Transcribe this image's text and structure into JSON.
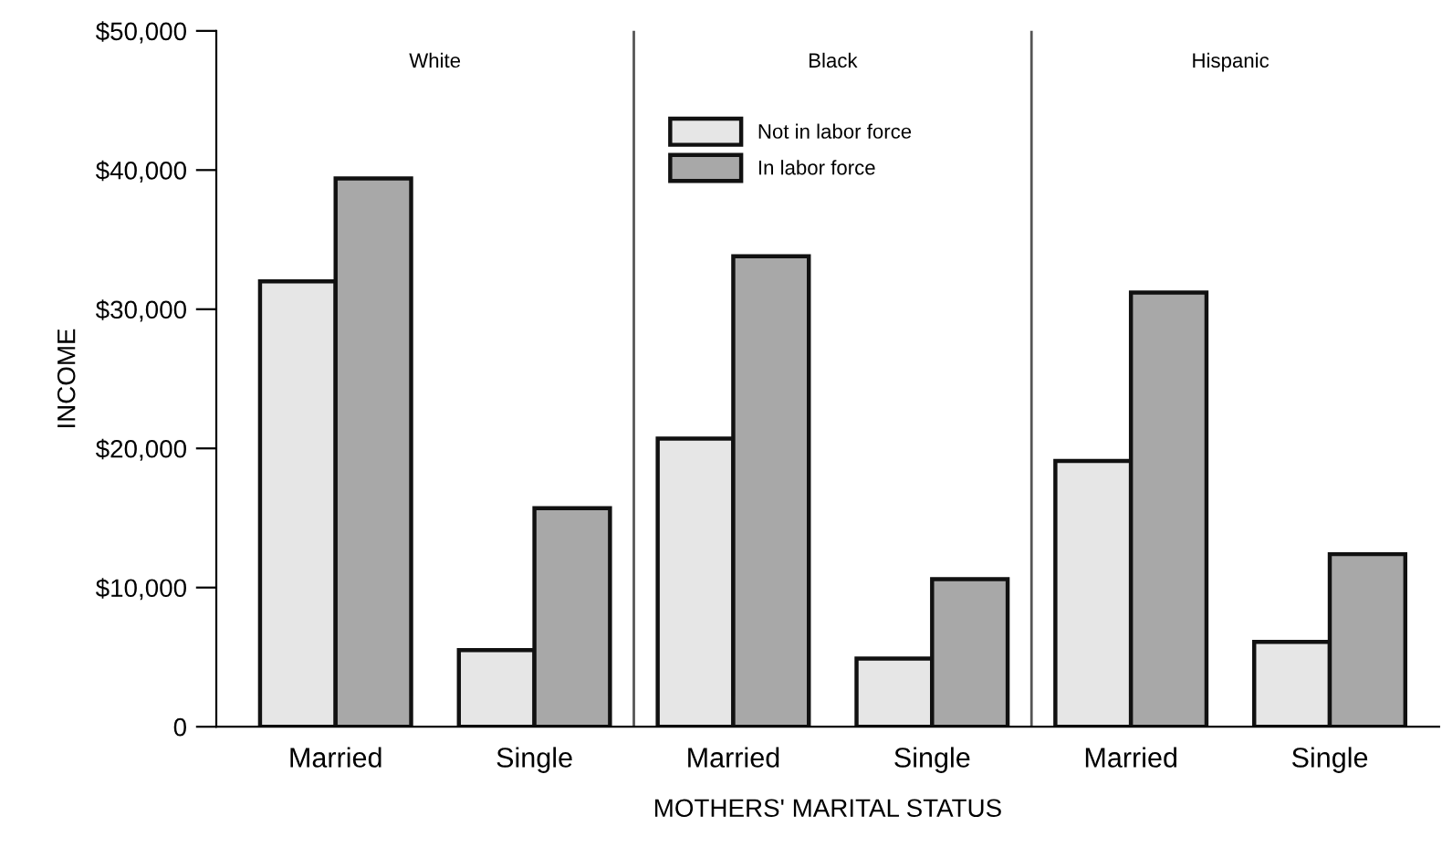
{
  "chart_data": {
    "type": "bar",
    "xlabel": "MOTHERS' MARITAL STATUS",
    "ylabel": "INCOME",
    "categories": [
      "Married",
      "Single",
      "Married",
      "Single",
      "Married",
      "Single"
    ],
    "series": [
      {
        "name": "Not in labor force",
        "color": "#e6e6e6",
        "values": [
          32000,
          5500,
          20700,
          4900,
          19100,
          6100
        ]
      },
      {
        "name": "In labor force",
        "color": "#a8a8a8",
        "values": [
          39400,
          15700,
          33800,
          10600,
          31200,
          12400
        ]
      }
    ],
    "annotations": [
      "White",
      "Black",
      "Hispanic"
    ],
    "ylim": [
      0,
      50000
    ],
    "yticks": [
      0,
      {
        "value": 10000,
        "label": "$10,000"
      },
      {
        "value": 20000,
        "label": "$20,000"
      },
      {
        "value": 30000,
        "label": "$30,000"
      },
      {
        "value": 40000,
        "label": "$40,000"
      },
      {
        "value": 50000,
        "label": "$50,000"
      }
    ],
    "grid": false,
    "legend": "top"
  }
}
